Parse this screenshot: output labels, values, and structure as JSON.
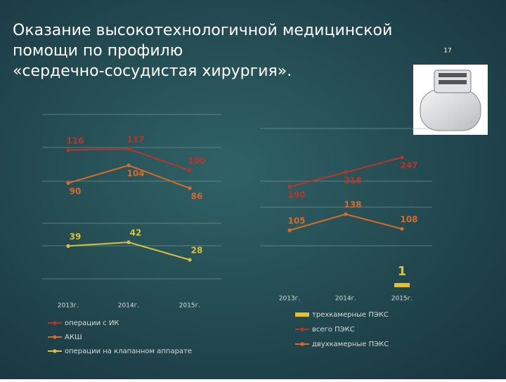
{
  "title": [
    "Оказание высокотехнологичной медицинской",
    "помощи по профилю",
    "«сердечно-сосудистая хирургия»."
  ],
  "page_number": "17",
  "chart_data": [
    {
      "type": "line",
      "categories": [
        "2013г.",
        "2014г.",
        "2015г."
      ],
      "series": [
        {
          "name": "операции с ИК",
          "color": "#b8352c",
          "values": [
            116,
            117,
            100
          ]
        },
        {
          "name": "АКШ",
          "color": "#d96a28",
          "values": [
            90,
            104,
            86
          ]
        },
        {
          "name": "операции на клапанном аппарате",
          "color": "#d8c23a",
          "values": [
            39,
            42,
            28
          ]
        }
      ]
    },
    {
      "type": "line",
      "categories": [
        "2013г.",
        "2014г.",
        "2015г."
      ],
      "series": [
        {
          "name": "трехкамерные ПЭКС",
          "type": "bar",
          "color": "#e6c02c",
          "values": [
            null,
            null,
            1
          ]
        },
        {
          "name": "всего ПЭКС",
          "color": "#b8352c",
          "values": [
            190,
            218,
            247
          ]
        },
        {
          "name": "двухкамерные ПЭКС",
          "color": "#d96a28",
          "values": [
            105,
            138,
            108
          ]
        }
      ]
    }
  ]
}
